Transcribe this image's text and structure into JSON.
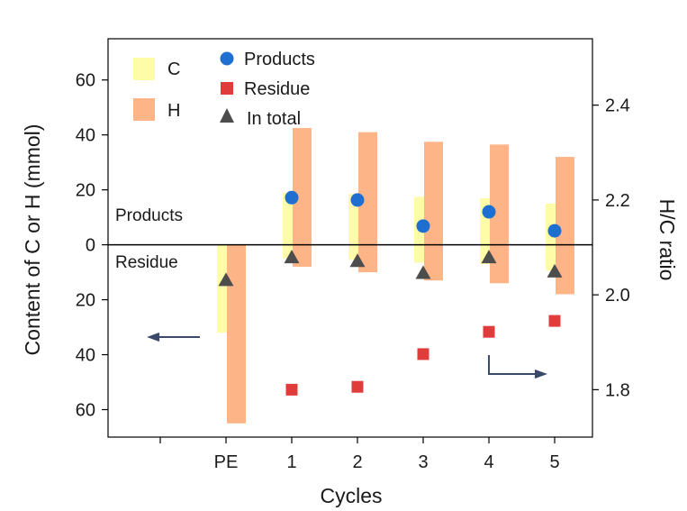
{
  "chart_data": {
    "type": "bar",
    "title": "",
    "categories": [
      "",
      "PE",
      "1",
      "2",
      "3",
      "4",
      "5"
    ],
    "xlabel": "Cycles",
    "ylabel": "Content of C or H (mmol)",
    "y2label": "H/C ratio",
    "ylim": [
      -70,
      75
    ],
    "y2lim": [
      1.7,
      2.54
    ],
    "yticks": [
      60,
      40,
      20,
      0,
      -20,
      -40,
      -60
    ],
    "ytick_labels": [
      "60",
      "40",
      "20",
      "0",
      "20",
      "40",
      "60"
    ],
    "y2ticks": [
      2.4,
      2.2,
      2.0,
      1.8
    ],
    "y2tick_labels": [
      "2.4",
      "2.2",
      "2.0",
      "1.8"
    ],
    "series": [
      {
        "name": "C",
        "kind": "bar",
        "color": "#FFFCA8",
        "values_top": [
          null,
          0,
          19,
          18.5,
          17.5,
          17,
          15
        ],
        "values_bottom": [
          null,
          -32,
          -5,
          -5.5,
          -6.5,
          -7,
          -9.5
        ]
      },
      {
        "name": "H",
        "kind": "bar",
        "color": "#FDB487",
        "values_top": [
          null,
          0,
          42.5,
          41,
          37.5,
          36.5,
          32
        ],
        "values_bottom": [
          null,
          -65,
          -8,
          -10,
          -13,
          -14,
          -18
        ]
      },
      {
        "name": "Products",
        "kind": "point",
        "marker": "circle",
        "color": "#1F6FD1",
        "axis": "right",
        "values": [
          null,
          null,
          2.205,
          2.2,
          2.145,
          2.175,
          2.135
        ]
      },
      {
        "name": "Residue",
        "kind": "point",
        "marker": "square",
        "color": "#E03C3C",
        "axis": "right",
        "values": [
          null,
          null,
          1.8,
          1.806,
          1.875,
          1.922,
          1.945
        ]
      },
      {
        "name": "In total",
        "kind": "point",
        "marker": "triangle",
        "color": "#4D4D4D",
        "axis": "right",
        "values": [
          null,
          2.03,
          2.078,
          2.07,
          2.045,
          2.078,
          2.048
        ]
      }
    ],
    "region_labels": {
      "upper": "Products",
      "lower": "Residue"
    },
    "arrows": [
      {
        "name": "left",
        "points_to": "left axis"
      },
      {
        "name": "right",
        "points_to": "right axis"
      }
    ],
    "legend": {
      "position": "top-left",
      "entries": [
        "C",
        "H",
        "Products",
        "Residue",
        "In total"
      ]
    },
    "grid": false
  }
}
